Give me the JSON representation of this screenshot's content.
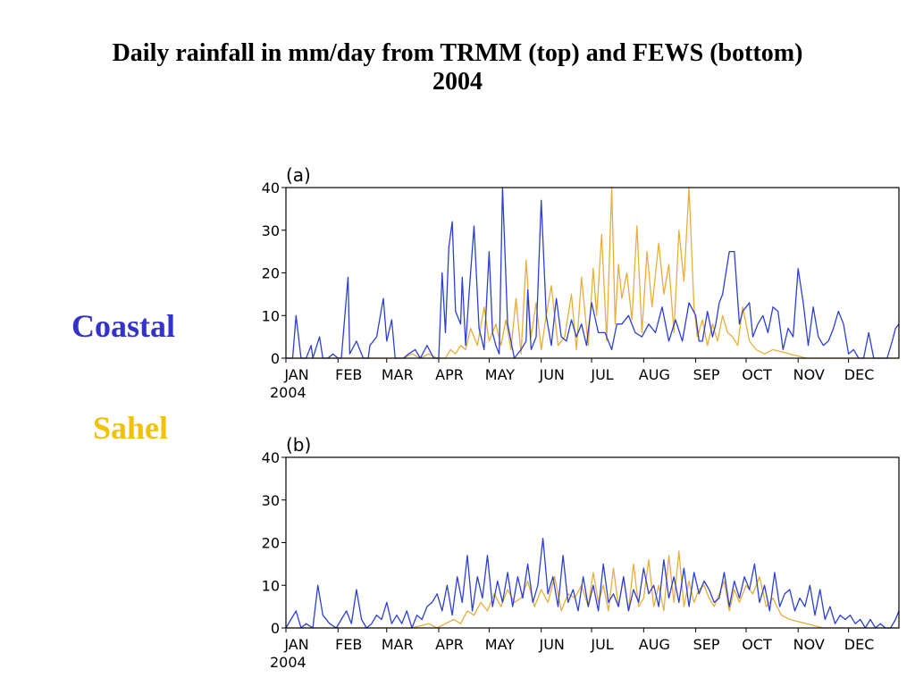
{
  "slide": {
    "title_line1": "Daily rainfall in mm/day from TRMM (top) and FEWS (bottom)",
    "title_line2": "2004"
  },
  "legend": [
    {
      "label": "Coastal",
      "color": "#3333cc"
    },
    {
      "label": "Sahel",
      "color": "#f2c200"
    }
  ],
  "series_colors": {
    "coastal": "#2b3fd6",
    "sahel": "#e8ae3c"
  },
  "chart_data": [
    {
      "type": "line",
      "panel_label": "(a)",
      "ylim": [
        0,
        40
      ],
      "yticks": [
        0,
        10,
        20,
        30,
        40
      ],
      "xlim": [
        0,
        365
      ],
      "month_ticks": [
        {
          "label": "JAN",
          "day": 0
        },
        {
          "label": "FEB",
          "day": 31
        },
        {
          "label": "MAR",
          "day": 60
        },
        {
          "label": "APR",
          "day": 91
        },
        {
          "label": "MAY",
          "day": 121
        },
        {
          "label": "JUN",
          "day": 152
        },
        {
          "label": "JUL",
          "day": 182
        },
        {
          "label": "AUG",
          "day": 213
        },
        {
          "label": "SEP",
          "day": 244
        },
        {
          "label": "OCT",
          "day": 274
        },
        {
          "label": "NOV",
          "day": 305
        },
        {
          "label": "DEC",
          "day": 335
        }
      ],
      "year_label": "2004",
      "series": [
        {
          "key": "coastal",
          "x": [
            0,
            4,
            6,
            9,
            12,
            15,
            16,
            20,
            22,
            25,
            28,
            31,
            33,
            37,
            38,
            42,
            46,
            49,
            50,
            54,
            58,
            60,
            63,
            65,
            67,
            70,
            73,
            77,
            80,
            84,
            88,
            91,
            93,
            95,
            97,
            99,
            101,
            104,
            105,
            107,
            109,
            112,
            115,
            118,
            121,
            123,
            125,
            127,
            129,
            132,
            136,
            140,
            143,
            144,
            146,
            149,
            152,
            155,
            158,
            161,
            164,
            167,
            170,
            173,
            176,
            179,
            182,
            186,
            190,
            194,
            197,
            200,
            204,
            208,
            212,
            216,
            220,
            224,
            228,
            232,
            236,
            240,
            244,
            246,
            248,
            251,
            254,
            256,
            258,
            260,
            262,
            264,
            267,
            270,
            272,
            274,
            276,
            278,
            281,
            284,
            287,
            290,
            293,
            296,
            299,
            302,
            305,
            308,
            311,
            314,
            317,
            320,
            323,
            326,
            329,
            332,
            335,
            338,
            341,
            344,
            347,
            350,
            354,
            358,
            361,
            363,
            365
          ],
          "y": [
            0,
            0,
            10,
            0,
            0,
            3,
            0,
            5,
            0,
            0,
            1,
            0,
            0,
            19,
            1,
            4,
            0,
            0,
            3,
            5,
            14,
            4,
            9,
            0,
            0,
            0,
            1,
            2,
            0,
            3,
            0,
            0,
            20,
            6,
            26,
            32,
            11,
            8,
            19,
            3,
            15,
            31,
            7,
            2,
            25,
            6,
            3,
            1,
            40,
            8,
            0,
            2,
            4,
            16,
            2,
            5,
            37,
            10,
            3,
            14,
            5,
            4,
            9,
            5,
            8,
            3,
            13,
            6,
            6,
            2,
            8,
            8,
            10,
            6,
            5,
            8,
            6,
            12,
            4,
            9,
            4,
            13,
            10,
            4,
            4,
            11,
            5,
            8,
            13,
            15,
            20,
            25,
            25,
            8,
            11,
            12,
            13,
            5,
            8,
            10,
            6,
            12,
            11,
            2,
            7,
            5,
            21,
            13,
            3,
            12,
            5,
            3,
            4,
            7,
            11,
            8,
            1,
            2,
            0,
            0,
            6,
            0,
            0,
            0,
            4,
            7,
            8
          ]
        },
        {
          "key": "sahel",
          "x": [
            0,
            10,
            20,
            30,
            40,
            50,
            60,
            65,
            70,
            75,
            80,
            85,
            90,
            95,
            98,
            101,
            104,
            107,
            110,
            114,
            118,
            121,
            125,
            128,
            131,
            134,
            137,
            140,
            143,
            146,
            149,
            152,
            155,
            158,
            162,
            166,
            170,
            173,
            176,
            180,
            183,
            185,
            188,
            191,
            194,
            196,
            198,
            200,
            203,
            206,
            209,
            212,
            215,
            218,
            222,
            225,
            228,
            231,
            234,
            237,
            240,
            243,
            245,
            248,
            251,
            254,
            257,
            260,
            263,
            266,
            269,
            272,
            276,
            280,
            285,
            290,
            300,
            310,
            320,
            330,
            340,
            350,
            365
          ],
          "y": [
            0,
            0,
            0,
            0,
            0,
            0,
            0,
            0,
            0,
            1,
            0,
            1,
            0,
            0,
            2,
            1,
            3,
            2,
            7,
            3,
            12,
            4,
            8,
            3,
            9,
            2,
            14,
            1,
            23,
            5,
            13,
            2,
            10,
            17,
            3,
            5,
            15,
            2,
            19,
            3,
            21,
            10,
            29,
            4,
            40,
            8,
            22,
            14,
            20,
            9,
            31,
            6,
            25,
            12,
            27,
            15,
            22,
            6,
            30,
            18,
            40,
            12,
            5,
            9,
            3,
            8,
            4,
            10,
            6,
            5,
            3,
            12,
            4,
            2,
            1,
            2,
            1,
            0,
            0,
            0,
            0,
            0,
            0
          ]
        }
      ]
    },
    {
      "type": "line",
      "panel_label": "(b)",
      "ylim": [
        0,
        40
      ],
      "yticks": [
        0,
        10,
        20,
        30,
        40
      ],
      "xlim": [
        0,
        365
      ],
      "month_ticks": [
        {
          "label": "JAN",
          "day": 0
        },
        {
          "label": "FEB",
          "day": 31
        },
        {
          "label": "MAR",
          "day": 60
        },
        {
          "label": "APR",
          "day": 91
        },
        {
          "label": "MAY",
          "day": 121
        },
        {
          "label": "JUN",
          "day": 152
        },
        {
          "label": "JUL",
          "day": 182
        },
        {
          "label": "AUG",
          "day": 213
        },
        {
          "label": "SEP",
          "day": 244
        },
        {
          "label": "OCT",
          "day": 274
        },
        {
          "label": "NOV",
          "day": 305
        },
        {
          "label": "DEC",
          "day": 335
        }
      ],
      "year_label": "2004",
      "series": [
        {
          "key": "coastal",
          "x": [
            0,
            3,
            6,
            9,
            12,
            16,
            19,
            22,
            26,
            30,
            33,
            36,
            39,
            42,
            45,
            48,
            51,
            54,
            57,
            60,
            63,
            66,
            69,
            72,
            75,
            78,
            81,
            84,
            87,
            90,
            93,
            96,
            99,
            102,
            105,
            108,
            111,
            114,
            117,
            120,
            123,
            126,
            129,
            132,
            135,
            138,
            141,
            144,
            147,
            150,
            153,
            156,
            159,
            162,
            165,
            168,
            171,
            174,
            177,
            180,
            183,
            186,
            189,
            192,
            195,
            198,
            201,
            204,
            207,
            210,
            213,
            216,
            219,
            222,
            225,
            228,
            231,
            234,
            237,
            240,
            243,
            246,
            249,
            252,
            255,
            258,
            261,
            264,
            267,
            270,
            273,
            276,
            279,
            282,
            285,
            288,
            291,
            294,
            297,
            300,
            303,
            306,
            309,
            312,
            315,
            318,
            321,
            324,
            327,
            330,
            333,
            336,
            339,
            342,
            345,
            348,
            351,
            354,
            357,
            360,
            363,
            365
          ],
          "y": [
            0,
            2,
            4,
            0,
            1,
            0,
            10,
            3,
            1,
            0,
            2,
            4,
            1,
            9,
            2,
            0,
            1,
            3,
            2,
            6,
            1,
            3,
            1,
            4,
            0,
            3,
            2,
            5,
            6,
            8,
            4,
            10,
            3,
            12,
            6,
            17,
            4,
            12,
            7,
            17,
            5,
            11,
            6,
            13,
            5,
            12,
            7,
            15,
            6,
            10,
            21,
            8,
            12,
            5,
            17,
            6,
            9,
            4,
            12,
            5,
            10,
            4,
            15,
            6,
            8,
            5,
            12,
            4,
            9,
            6,
            14,
            8,
            10,
            5,
            16,
            7,
            12,
            6,
            14,
            5,
            13,
            8,
            11,
            9,
            6,
            7,
            13,
            5,
            11,
            7,
            12,
            9,
            15,
            6,
            10,
            4,
            13,
            5,
            8,
            9,
            4,
            7,
            5,
            10,
            3,
            9,
            2,
            5,
            1,
            3,
            2,
            3,
            1,
            2,
            0,
            2,
            0,
            1,
            0,
            0,
            2,
            4
          ]
        },
        {
          "key": "sahel",
          "x": [
            0,
            15,
            30,
            45,
            60,
            75,
            85,
            90,
            95,
            100,
            104,
            108,
            112,
            116,
            120,
            124,
            128,
            132,
            136,
            140,
            144,
            148,
            152,
            156,
            160,
            164,
            168,
            172,
            176,
            180,
            183,
            186,
            189,
            192,
            195,
            198,
            201,
            204,
            207,
            210,
            213,
            216,
            219,
            222,
            225,
            228,
            231,
            234,
            237,
            240,
            243,
            246,
            249,
            252,
            255,
            258,
            261,
            264,
            267,
            270,
            274,
            278,
            282,
            286,
            290,
            295,
            300,
            310,
            320,
            330,
            340,
            350,
            365
          ],
          "y": [
            0,
            0,
            0,
            0,
            0,
            0,
            1,
            0,
            1,
            2,
            1,
            4,
            3,
            6,
            4,
            8,
            5,
            9,
            6,
            7,
            11,
            5,
            9,
            6,
            12,
            4,
            8,
            7,
            10,
            5,
            13,
            6,
            10,
            4,
            14,
            5,
            12,
            4,
            15,
            5,
            7,
            16,
            5,
            10,
            4,
            17,
            6,
            18,
            5,
            11,
            6,
            9,
            10,
            7,
            5,
            8,
            11,
            4,
            9,
            6,
            10,
            8,
            12,
            5,
            7,
            3,
            2,
            1,
            0,
            0,
            0,
            0,
            0
          ]
        }
      ]
    }
  ]
}
